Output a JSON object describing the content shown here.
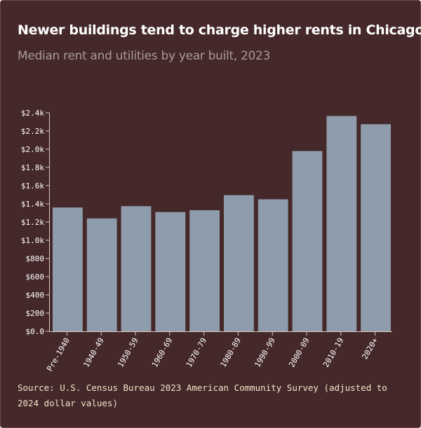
{
  "title": "Newer buildings tend to charge higher rents in Chicago",
  "subtitle": "Median rent and utilities by year built, 2023",
  "source": "Source: U.S. Census Bureau 2023 American Community Survey (adjusted to 2024 dollar values)",
  "colors": {
    "background": "#45282a",
    "bar": "#8f9cab",
    "axis": "#d9c8c0",
    "text": "#ffffff"
  },
  "chart_data": {
    "type": "bar",
    "title": "Newer buildings tend to charge higher rents in Chicago",
    "subtitle": "Median rent and utilities by year built, 2023",
    "xlabel": "",
    "ylabel": "",
    "categories": [
      "Pre-1940",
      "1940-49",
      "1950-59",
      "1960-69",
      "1970-79",
      "1980-89",
      "1990-99",
      "2000-09",
      "2010-19",
      "2020+"
    ],
    "values": [
      1360,
      1240,
      1375,
      1310,
      1330,
      1495,
      1450,
      1980,
      2365,
      2275
    ],
    "ylim": [
      0,
      2400
    ],
    "yticks": [
      0,
      200,
      400,
      600,
      800,
      1000,
      1200,
      1400,
      1600,
      1800,
      2000,
      2200,
      2400
    ],
    "ytick_labels": [
      "$0.0",
      "$200",
      "$400",
      "$600",
      "$800",
      "$1.0k",
      "$1.2k",
      "$1.4k",
      "$1.6k",
      "$1.8k",
      "$2.0k",
      "$2.2k",
      "$2.4k"
    ],
    "grid": false,
    "legend": "none"
  }
}
